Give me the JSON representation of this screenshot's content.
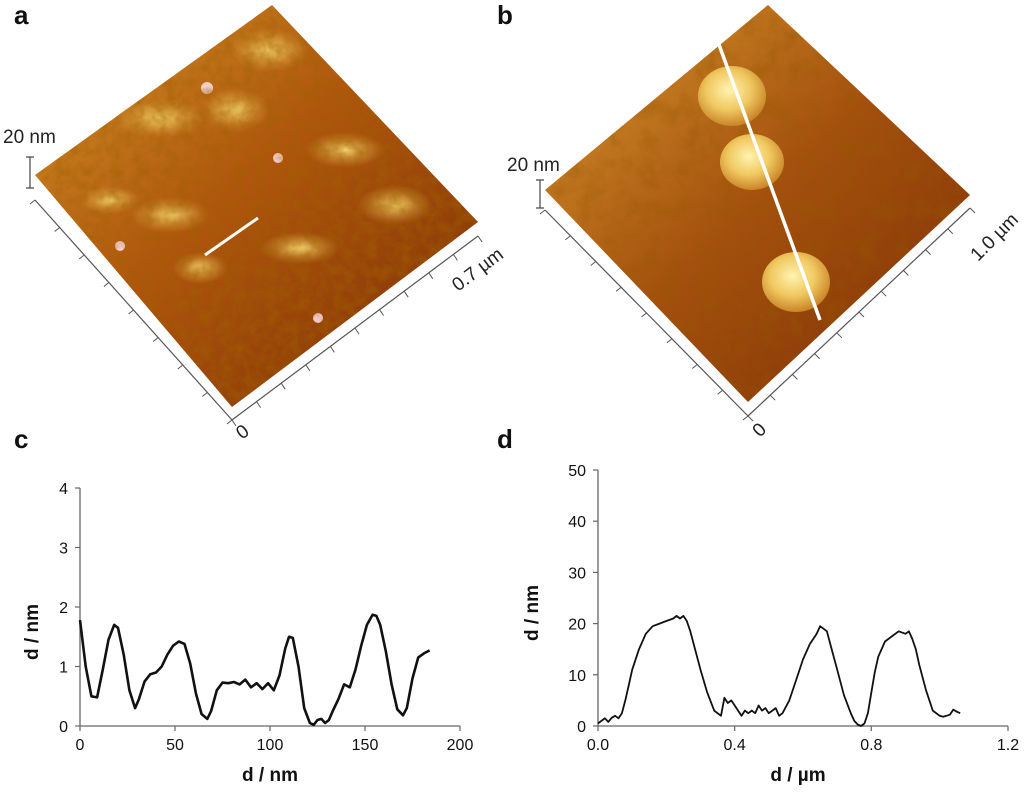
{
  "panels": {
    "a": {
      "letter": "a",
      "z_scale_label": "20 nm",
      "lateral_label": "0.7 µm",
      "origin_label": "0"
    },
    "b": {
      "letter": "b",
      "z_scale_label": "20 nm",
      "lateral_label": "1.0 µm",
      "origin_label": "0"
    }
  },
  "colors": {
    "afm_dark": "#5a1c00",
    "afm_mid": "#b35a0c",
    "afm_light": "#e7b03f",
    "afm_highlight": "#fff0a6",
    "profile_line": "#ffffff",
    "plot_line": "#111111"
  },
  "chart_data": [
    {
      "panel": "c",
      "letter": "c",
      "type": "line",
      "xlabel": "d / nm",
      "ylabel": "d / nm",
      "xlim": [
        0,
        200
      ],
      "ylim": [
        0,
        4
      ],
      "xticks": [
        0,
        50,
        100,
        150,
        200
      ],
      "yticks": [
        0,
        1,
        2,
        3,
        4
      ],
      "xtick_labels": [
        "0",
        "50",
        "100",
        "150",
        "200"
      ],
      "ytick_labels": [
        "0",
        "1",
        "2",
        "3",
        "4"
      ],
      "grid": false,
      "series": [
        {
          "x": [
            0,
            3,
            6,
            9,
            12,
            15,
            18,
            20,
            23,
            26,
            29,
            31,
            34,
            37,
            40,
            43,
            46,
            49,
            52,
            55,
            58,
            61,
            64,
            67,
            69,
            72,
            75,
            78,
            81,
            84,
            87,
            90,
            93,
            96,
            99,
            102,
            105,
            108,
            110,
            112,
            115,
            118,
            121,
            123,
            125,
            127,
            129,
            131,
            133,
            136,
            139,
            142,
            145,
            148,
            151,
            154,
            156,
            158,
            161,
            164,
            167,
            170,
            172,
            175,
            178,
            181,
            184
          ],
          "y": [
            1.78,
            1.0,
            0.5,
            0.48,
            0.95,
            1.45,
            1.7,
            1.65,
            1.2,
            0.6,
            0.3,
            0.45,
            0.75,
            0.87,
            0.9,
            1.0,
            1.2,
            1.35,
            1.42,
            1.38,
            1.05,
            0.55,
            0.2,
            0.12,
            0.25,
            0.6,
            0.73,
            0.72,
            0.74,
            0.7,
            0.78,
            0.65,
            0.72,
            0.62,
            0.72,
            0.6,
            0.85,
            1.3,
            1.5,
            1.48,
            1.0,
            0.3,
            0.05,
            0.02,
            0.1,
            0.12,
            0.05,
            0.1,
            0.25,
            0.45,
            0.7,
            0.65,
            0.95,
            1.35,
            1.7,
            1.87,
            1.85,
            1.7,
            1.25,
            0.7,
            0.28,
            0.18,
            0.3,
            0.8,
            1.15,
            1.22,
            1.27
          ]
        }
      ]
    },
    {
      "panel": "d",
      "letter": "d",
      "type": "line",
      "xlabel": "d / µm",
      "ylabel": "d / nm",
      "xlim": [
        0,
        1.2
      ],
      "ylim": [
        0,
        50
      ],
      "xticks": [
        0,
        0.4,
        0.8,
        1.2
      ],
      "yticks": [
        0,
        10,
        20,
        30,
        40,
        50
      ],
      "xtick_labels": [
        "0.0",
        "0.4",
        "0.8",
        "1.2"
      ],
      "ytick_labels": [
        "0",
        "10",
        "20",
        "30",
        "40",
        "50"
      ],
      "grid": false,
      "series": [
        {
          "x": [
            0,
            0.01,
            0.02,
            0.03,
            0.04,
            0.05,
            0.06,
            0.07,
            0.08,
            0.09,
            0.1,
            0.12,
            0.14,
            0.16,
            0.18,
            0.2,
            0.22,
            0.23,
            0.24,
            0.25,
            0.26,
            0.27,
            0.28,
            0.3,
            0.32,
            0.34,
            0.36,
            0.37,
            0.38,
            0.39,
            0.4,
            0.41,
            0.42,
            0.43,
            0.44,
            0.45,
            0.46,
            0.47,
            0.48,
            0.49,
            0.5,
            0.51,
            0.52,
            0.53,
            0.54,
            0.56,
            0.58,
            0.6,
            0.62,
            0.64,
            0.65,
            0.66,
            0.67,
            0.68,
            0.7,
            0.72,
            0.74,
            0.75,
            0.76,
            0.77,
            0.78,
            0.79,
            0.8,
            0.81,
            0.82,
            0.84,
            0.86,
            0.88,
            0.9,
            0.91,
            0.92,
            0.93,
            0.94,
            0.96,
            0.98,
            1.0,
            1.01,
            1.02,
            1.03,
            1.04,
            1.05,
            1.06
          ],
          "y": [
            0.5,
            1.0,
            1.5,
            0.8,
            1.6,
            2.0,
            1.5,
            2.5,
            5.0,
            8.0,
            11.0,
            15.0,
            18.0,
            19.5,
            20.0,
            20.5,
            21.0,
            21.5,
            21.0,
            21.5,
            20.5,
            18.5,
            16.0,
            11.0,
            6.5,
            3.0,
            2.0,
            5.5,
            4.5,
            5.0,
            4.0,
            3.0,
            2.0,
            3.0,
            2.5,
            3.0,
            2.5,
            4.0,
            3.0,
            3.5,
            2.5,
            3.0,
            3.5,
            2.0,
            2.5,
            5.0,
            9.0,
            13.0,
            16.0,
            18.0,
            19.5,
            19.0,
            18.5,
            16.0,
            11.0,
            6.0,
            2.5,
            1.0,
            0.3,
            0.0,
            0.5,
            2.5,
            6.5,
            10.5,
            13.5,
            16.5,
            17.5,
            18.5,
            18.0,
            18.5,
            17.0,
            15.0,
            12.0,
            7.0,
            3.0,
            2.0,
            1.8,
            2.0,
            2.2,
            3.2,
            2.8,
            2.5
          ]
        }
      ]
    }
  ]
}
